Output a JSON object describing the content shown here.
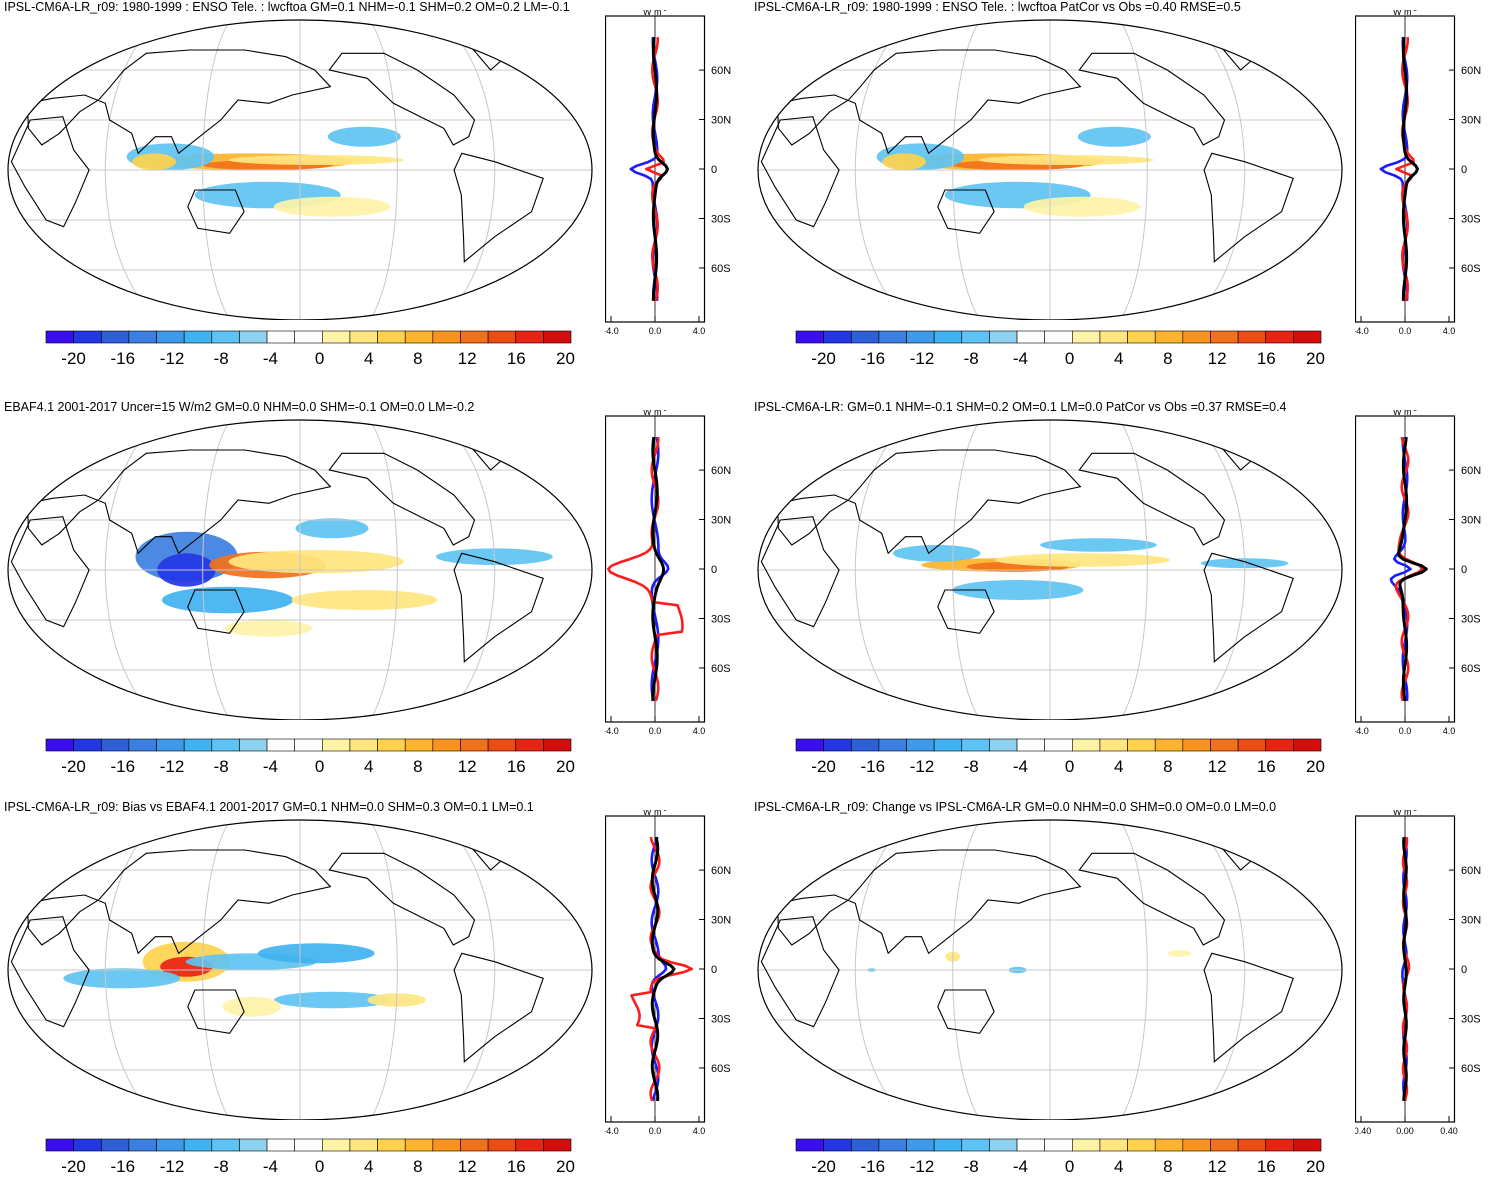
{
  "colorbar": {
    "colors": [
      "#3b0ef0",
      "#2436e6",
      "#2e5fd9",
      "#3d7fe0",
      "#3f9ae8",
      "#41b2f0",
      "#5ec3f2",
      "#8fd1f0",
      "#ffffff",
      "#ffffff",
      "#fff3a8",
      "#ffe680",
      "#fed24d",
      "#fcb42a",
      "#f7941d",
      "#f2711a",
      "#ee4b17",
      "#e82315",
      "#d40e0e"
    ],
    "labels": [
      "-20",
      "-16",
      "-12",
      "-8",
      "-4",
      "0",
      "4",
      "8",
      "12",
      "16",
      "20"
    ]
  },
  "profile_unit": "W m",
  "profile_unit_sup": "-2",
  "lat_labels": [
    "60N",
    "30N",
    "0",
    "30S",
    "60S"
  ],
  "panels": [
    {
      "title": "IPSL-CM6A-LR_r09: 1980-1999 : ENSO Tele. : lwcftoa GM=0.1 NHM=-0.1 SHM=0.2 OM=0.2 LM=-0.1",
      "profile_ticks": [
        "-4.0",
        "0.0",
        "4.0"
      ],
      "chart_data": {
        "type": "heatmap",
        "variable": "lwcftoa",
        "colorbar_range": [
          -20,
          20
        ],
        "stats": {
          "GM": 0.1,
          "NHM": -0.1,
          "SHM": 0.2,
          "OM": 0.2,
          "LM": -0.1
        },
        "zonal_mean_xlim": [
          -4.0,
          4.0
        ],
        "series_colors": [
          "#1b1bff",
          "#ff1b1b",
          "#000000"
        ]
      }
    },
    {
      "title": "IPSL-CM6A-LR_r09: 1980-1999 : ENSO Tele. : lwcftoa PatCor vs Obs =0.40 RMSE=0.5",
      "profile_ticks": [
        "-4.0",
        "0.0",
        "4.0"
      ],
      "chart_data": {
        "type": "heatmap",
        "variable": "lwcftoa",
        "colorbar_range": [
          -20,
          20
        ],
        "stats": {
          "PatCor vs Obs": 0.4,
          "RMSE": 0.5
        },
        "zonal_mean_xlim": [
          -4.0,
          4.0
        ],
        "series_colors": [
          "#1b1bff",
          "#ff1b1b",
          "#000000"
        ]
      }
    },
    {
      "title": "EBAF4.1 2001-2017 Uncer=15 W/m2 GM=0.0 NHM=0.0 SHM=-0.1 OM=0.0 LM=-0.2",
      "profile_ticks": [
        "-4.0",
        "0.0",
        "4.0"
      ],
      "chart_data": {
        "type": "heatmap",
        "colorbar_range": [
          -20,
          20
        ],
        "stats": {
          "Uncer": 15,
          "GM": 0.0,
          "NHM": 0.0,
          "SHM": -0.1,
          "OM": 0.0,
          "LM": -0.2
        },
        "zonal_mean_xlim": [
          -4.0,
          4.0
        ],
        "series_colors": [
          "#1b1bff",
          "#ff1b1b",
          "#000000"
        ]
      }
    },
    {
      "title": "IPSL-CM6A-LR: GM=0.1 NHM=-0.1 SHM=0.2 OM=0.1 LM=0.0 PatCor vs Obs =0.37 RMSE=0.4",
      "profile_ticks": [
        "-4.0",
        "0.0",
        "4.0"
      ],
      "chart_data": {
        "type": "heatmap",
        "colorbar_range": [
          -20,
          20
        ],
        "stats": {
          "GM": 0.1,
          "NHM": -0.1,
          "SHM": 0.2,
          "OM": 0.1,
          "LM": 0.0,
          "PatCor vs Obs": 0.37,
          "RMSE": 0.4
        },
        "zonal_mean_xlim": [
          -4.0,
          4.0
        ],
        "series_colors": [
          "#1b1bff",
          "#ff1b1b",
          "#000000"
        ]
      }
    },
    {
      "title": "IPSL-CM6A-LR_r09: Bias vs EBAF4.1 2001-2017 GM=0.1 NHM=0.0 SHM=0.3 OM=0.1 LM=0.1",
      "profile_ticks": [
        "-4.0",
        "0.0",
        "4.0"
      ],
      "chart_data": {
        "type": "heatmap",
        "colorbar_range": [
          -20,
          20
        ],
        "stats": {
          "GM": 0.1,
          "NHM": 0.0,
          "SHM": 0.3,
          "OM": 0.1,
          "LM": 0.1
        },
        "zonal_mean_xlim": [
          -4.0,
          4.0
        ],
        "series_colors": [
          "#1b1bff",
          "#ff1b1b",
          "#000000"
        ]
      }
    },
    {
      "title": "IPSL-CM6A-LR_r09: Change vs IPSL-CM6A-LR GM=0.0 NHM=0.0 SHM=0.0 OM=0.0 LM=0.0",
      "profile_ticks": [
        "-0.40",
        "0.00",
        "0.40"
      ],
      "chart_data": {
        "type": "heatmap",
        "colorbar_range": [
          -20,
          20
        ],
        "stats": {
          "GM": 0.0,
          "NHM": 0.0,
          "SHM": 0.0,
          "OM": 0.0,
          "LM": 0.0
        },
        "zonal_mean_xlim": [
          -0.4,
          0.4
        ],
        "series_colors": [
          "#1b1bff",
          "#ff1b1b",
          "#000000"
        ]
      }
    }
  ]
}
